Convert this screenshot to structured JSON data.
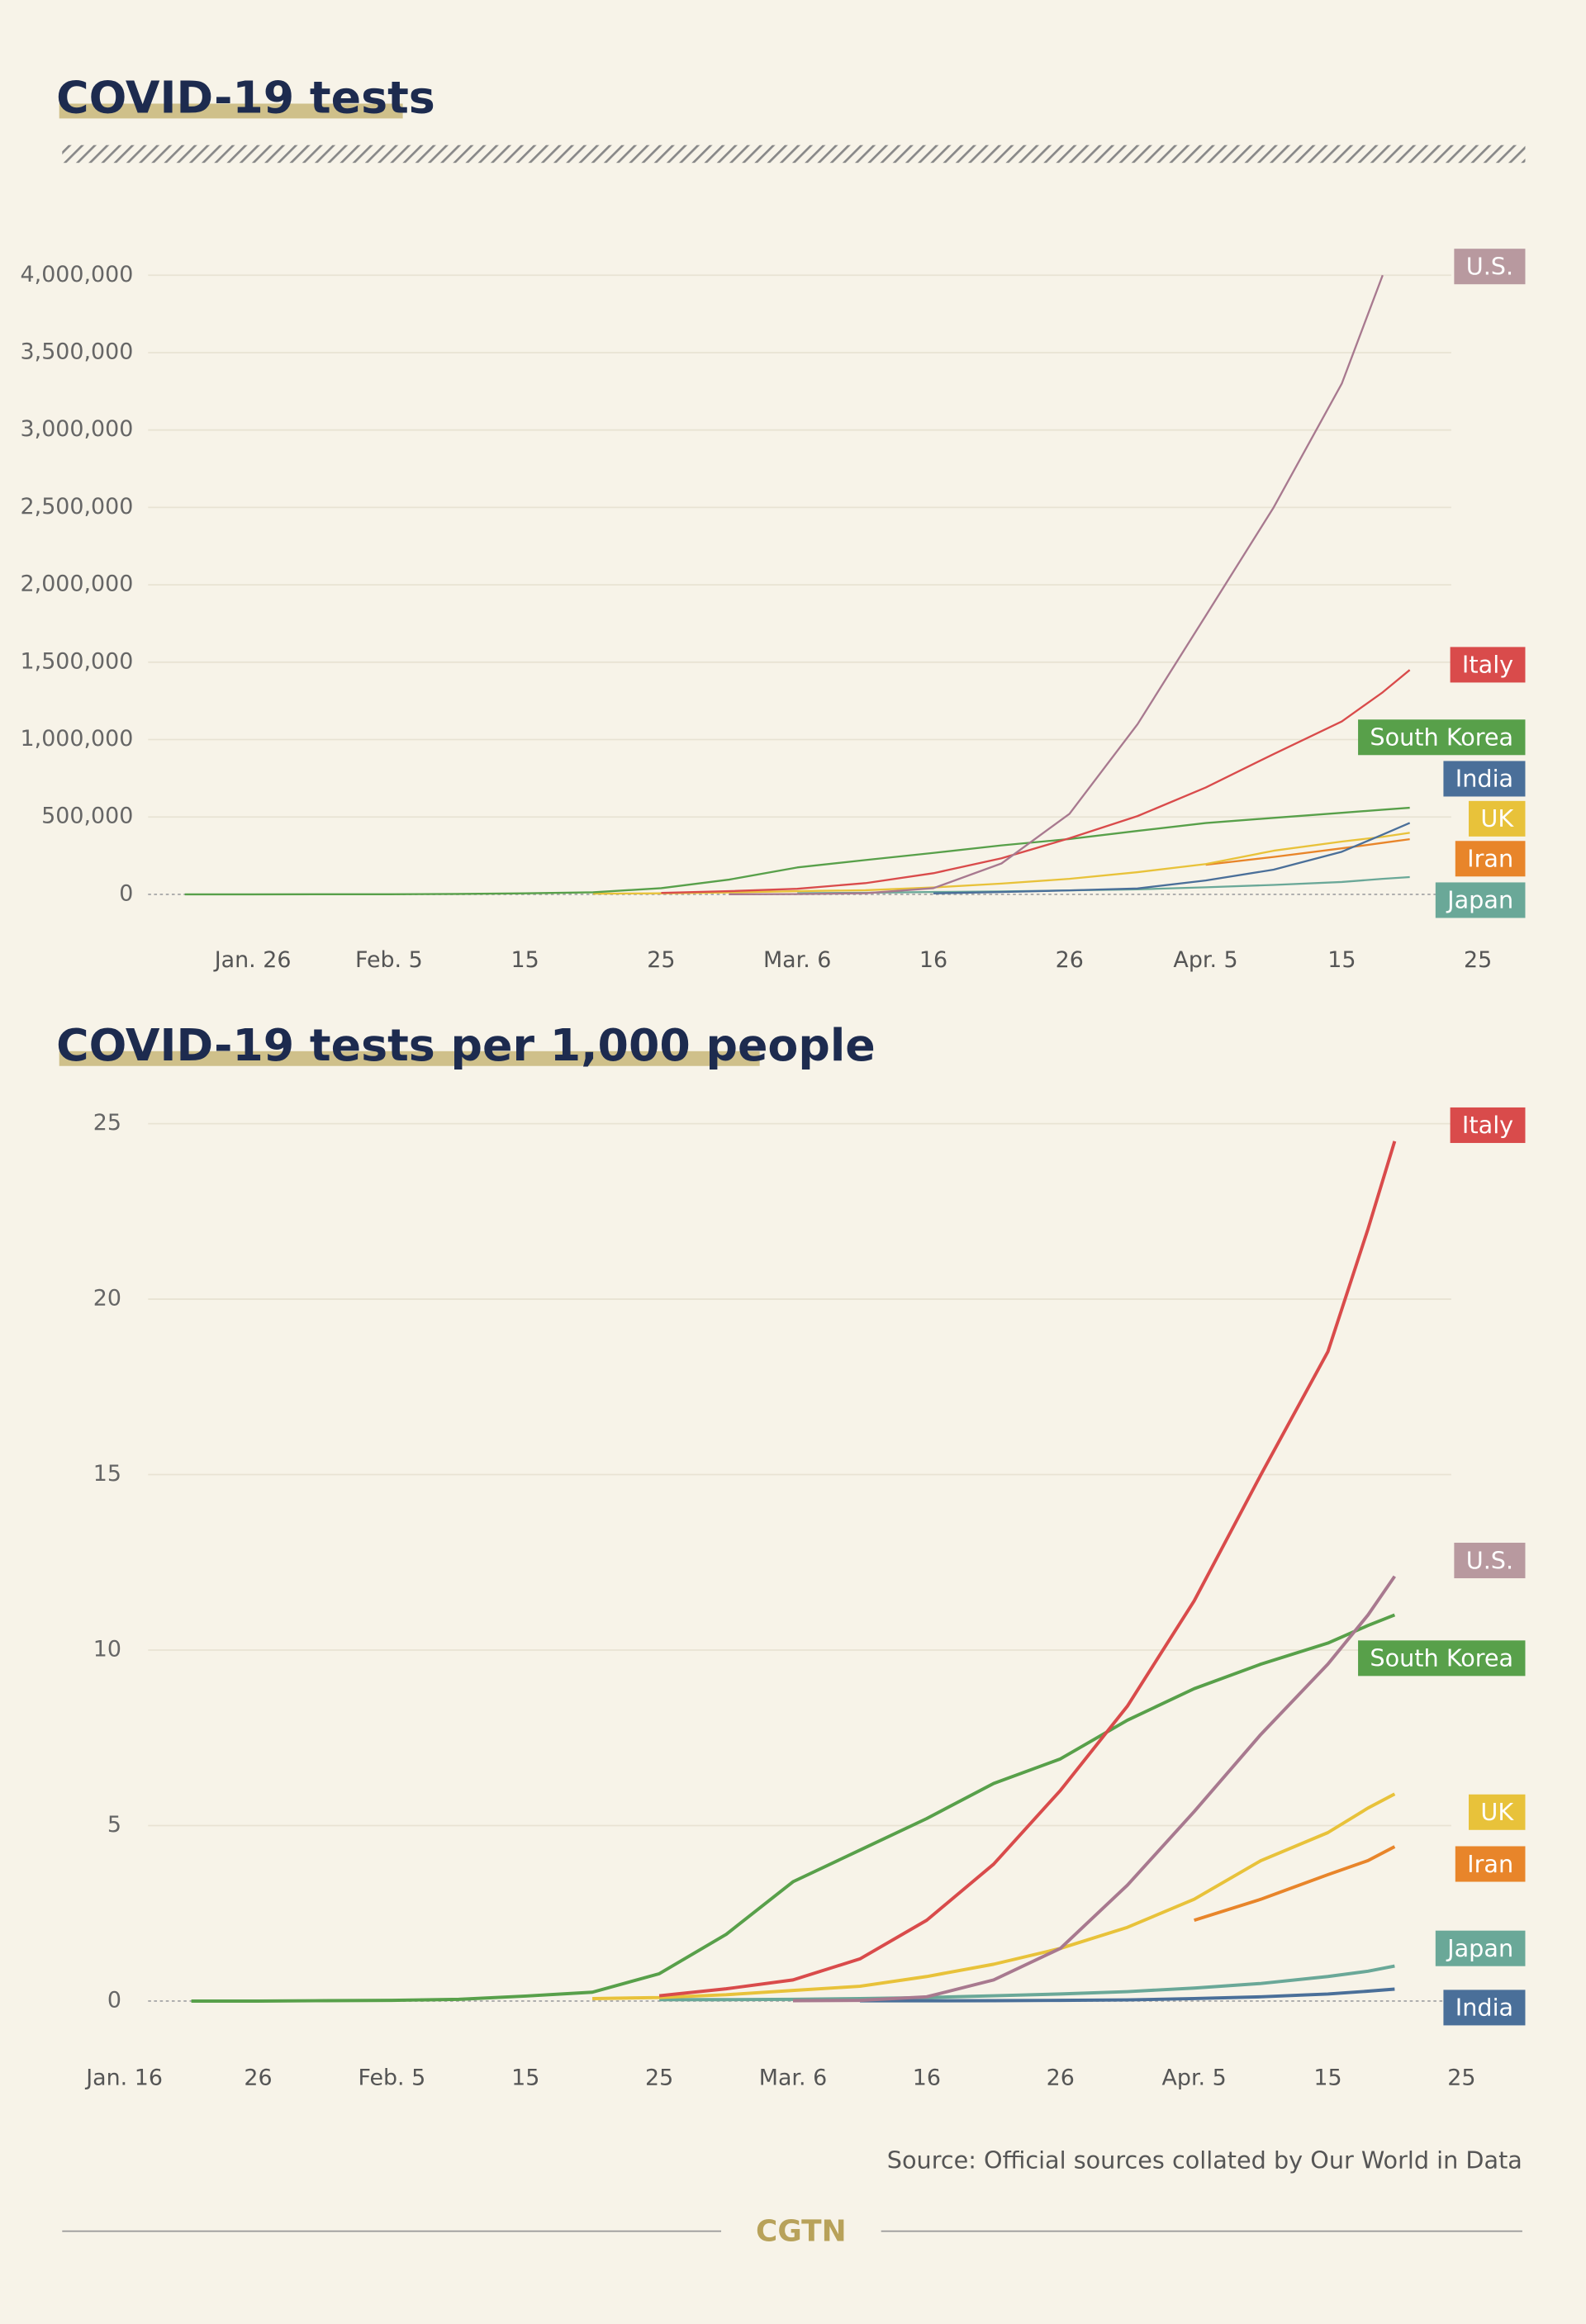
{
  "chart_data": [
    {
      "type": "line",
      "title": "COVID-19 tests",
      "x": [
        "01-21",
        "01-26",
        "01-31",
        "02-05",
        "02-10",
        "02-15",
        "02-20",
        "02-25",
        "03-01",
        "03-06",
        "03-11",
        "03-16",
        "03-21",
        "03-26",
        "03-31",
        "04-05",
        "04-10",
        "04-15",
        "04-18",
        "04-20"
      ],
      "xlim": [
        "01-17",
        "04-25"
      ],
      "xticks": [
        {
          "value": "01-26",
          "label": "Jan. 26"
        },
        {
          "value": "02-05",
          "label": "Feb. 5"
        },
        {
          "value": "02-15",
          "label": "15"
        },
        {
          "value": "02-25",
          "label": "25"
        },
        {
          "value": "03-06",
          "label": "Mar. 6"
        },
        {
          "value": "03-16",
          "label": "16"
        },
        {
          "value": "03-26",
          "label": "26"
        },
        {
          "value": "04-05",
          "label": "Apr. 5"
        },
        {
          "value": "04-15",
          "label": "15"
        },
        {
          "value": "04-25",
          "label": "25"
        }
      ],
      "ylim": [
        -200000,
        4200000
      ],
      "yticks": [
        0,
        {
          "value": 500000,
          "label": "500,000"
        },
        {
          "value": 1000000,
          "label": "1,000,000"
        },
        {
          "value": 1500000,
          "label": "1,500,000"
        },
        {
          "value": 2000000,
          "label": "2,000,000"
        },
        {
          "value": 2500000,
          "label": "2,500,000"
        },
        {
          "value": 3000000,
          "label": "3,000,000"
        },
        {
          "value": 3500000,
          "label": "3,500,000"
        },
        {
          "value": 4000000,
          "label": "4,000,000"
        }
      ],
      "grid": true,
      "series": [
        {
          "name": "U.S.",
          "color": "#a8798f",
          "values": [
            null,
            null,
            null,
            null,
            null,
            null,
            null,
            null,
            500,
            2000,
            8000,
            40000,
            200000,
            520000,
            1100000,
            1800000,
            2500000,
            3300000,
            4000000,
            null
          ]
        },
        {
          "name": "Italy",
          "color": "#d94b4b",
          "values": [
            null,
            null,
            null,
            null,
            null,
            null,
            null,
            9000,
            21000,
            36000,
            73000,
            137000,
            233000,
            362000,
            506000,
            691000,
            907000,
            1117000,
            1306000,
            1450000
          ]
        },
        {
          "name": "South Korea",
          "color": "#58a04a",
          "values": [
            0,
            100,
            500,
            1000,
            2500,
            7000,
            13000,
            40000,
            96000,
            174000,
            222000,
            268000,
            317000,
            358000,
            410000,
            461000,
            494000,
            527000,
            547000,
            559000
          ]
        },
        {
          "name": "India",
          "color": "#4a6f99",
          "values": [
            null,
            null,
            null,
            null,
            null,
            null,
            null,
            null,
            null,
            null,
            null,
            6500,
            15000,
            26000,
            38000,
            90000,
            160000,
            275000,
            386000,
            462000
          ]
        },
        {
          "name": "UK",
          "color": "#e8c23a",
          "values": [
            null,
            null,
            null,
            null,
            null,
            null,
            5000,
            7000,
            12000,
            21000,
            27000,
            45000,
            70000,
            100000,
            143000,
            196000,
            282000,
            341000,
            372000,
            398000
          ]
        },
        {
          "name": "Iran",
          "color": "#e8852a",
          "values": [
            null,
            null,
            null,
            null,
            null,
            null,
            null,
            null,
            null,
            null,
            null,
            null,
            null,
            null,
            null,
            191000,
            242000,
            297000,
            333000,
            357000
          ]
        },
        {
          "name": "Japan",
          "color": "#6aa898",
          "values": [
            null,
            null,
            null,
            null,
            null,
            null,
            null,
            null,
            null,
            8000,
            10000,
            15000,
            19000,
            26000,
            32000,
            46000,
            61000,
            80000,
            100000,
            112000
          ]
        }
      ]
    },
    {
      "type": "line",
      "title": "COVID-19 tests per 1,000 people",
      "x": [
        "01-21",
        "01-26",
        "01-31",
        "02-05",
        "02-10",
        "02-15",
        "02-20",
        "02-25",
        "03-01",
        "03-06",
        "03-11",
        "03-16",
        "03-21",
        "03-26",
        "03-31",
        "04-05",
        "04-10",
        "04-15",
        "04-18",
        "04-20"
      ],
      "xlim": [
        "01-16",
        "04-25"
      ],
      "xticks": [
        {
          "value": "01-16",
          "label": "Jan. 16"
        },
        {
          "value": "01-26",
          "label": "26"
        },
        {
          "value": "02-05",
          "label": "Feb. 5"
        },
        {
          "value": "02-15",
          "label": "15"
        },
        {
          "value": "02-25",
          "label": "25"
        },
        {
          "value": "03-06",
          "label": "Mar. 6"
        },
        {
          "value": "03-16",
          "label": "16"
        },
        {
          "value": "03-26",
          "label": "26"
        },
        {
          "value": "04-05",
          "label": "Apr. 5"
        },
        {
          "value": "04-15",
          "label": "15"
        },
        {
          "value": "04-25",
          "label": "25"
        }
      ],
      "ylim": [
        -1.2,
        25.8
      ],
      "yticks": [
        0,
        5,
        10,
        15,
        20,
        25
      ],
      "grid": true,
      "series": [
        {
          "name": "U.S.",
          "color": "#a8798f",
          "values": [
            null,
            null,
            null,
            null,
            null,
            null,
            null,
            null,
            null,
            0.01,
            0.02,
            0.12,
            0.6,
            1.5,
            3.3,
            5.4,
            7.6,
            9.6,
            11.0,
            12.1
          ]
        },
        {
          "name": "Italy",
          "color": "#d94b4b",
          "values": [
            null,
            null,
            null,
            null,
            null,
            null,
            null,
            0.15,
            0.35,
            0.6,
            1.2,
            2.3,
            3.9,
            6.0,
            8.4,
            11.4,
            15.0,
            18.5,
            22.0,
            24.5
          ]
        },
        {
          "name": "South Korea",
          "color": "#58a04a",
          "values": [
            0,
            0,
            0.01,
            0.02,
            0.05,
            0.14,
            0.25,
            0.78,
            1.9,
            3.4,
            4.3,
            5.2,
            6.2,
            6.9,
            8.0,
            8.9,
            9.6,
            10.2,
            10.7,
            11.0
          ]
        },
        {
          "name": "India",
          "color": "#4a6f99",
          "values": [
            null,
            null,
            null,
            null,
            null,
            null,
            null,
            null,
            null,
            null,
            0.005,
            0.005,
            0.01,
            0.02,
            0.03,
            0.07,
            0.12,
            0.2,
            0.28,
            0.34
          ]
        },
        {
          "name": "UK",
          "color": "#e8c23a",
          "values": [
            null,
            null,
            null,
            null,
            null,
            null,
            0.07,
            0.1,
            0.18,
            0.3,
            0.42,
            0.7,
            1.05,
            1.5,
            2.1,
            2.9,
            4.0,
            4.8,
            5.5,
            5.9
          ]
        },
        {
          "name": "Iran",
          "color": "#e8852a",
          "values": [
            null,
            null,
            null,
            null,
            null,
            null,
            null,
            null,
            null,
            null,
            null,
            null,
            null,
            null,
            null,
            2.3,
            2.9,
            3.6,
            4.0,
            4.4
          ]
        },
        {
          "name": "Japan",
          "color": "#6aa898",
          "values": [
            null,
            null,
            null,
            null,
            null,
            null,
            null,
            0.04,
            0.04,
            0.05,
            0.07,
            0.1,
            0.15,
            0.2,
            0.27,
            0.37,
            0.5,
            0.7,
            0.85,
            1.0
          ]
        }
      ]
    }
  ],
  "source": "Source: Official sources collated by Our World in Data",
  "brand": "CGTN"
}
